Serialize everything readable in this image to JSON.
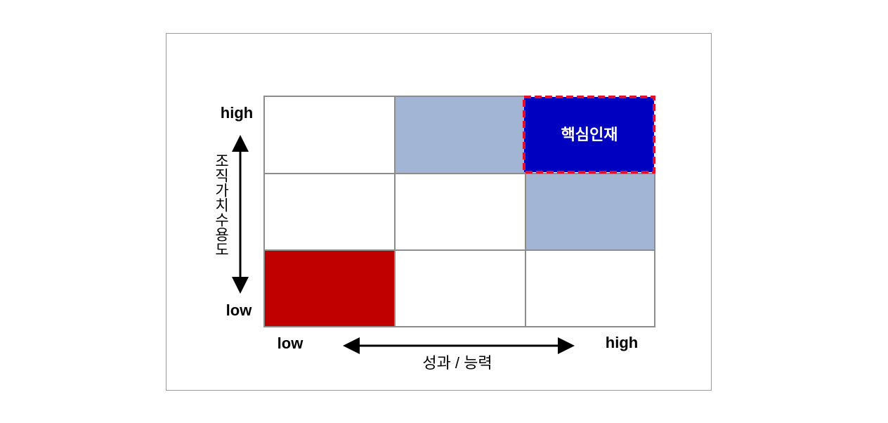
{
  "y_axis": {
    "high": "high",
    "low": "low",
    "label": "조직가치수용도"
  },
  "x_axis": {
    "low": "low",
    "high": "high",
    "label": "성과 / 능력"
  },
  "grid": {
    "highlight_label": "핵심인재"
  }
}
